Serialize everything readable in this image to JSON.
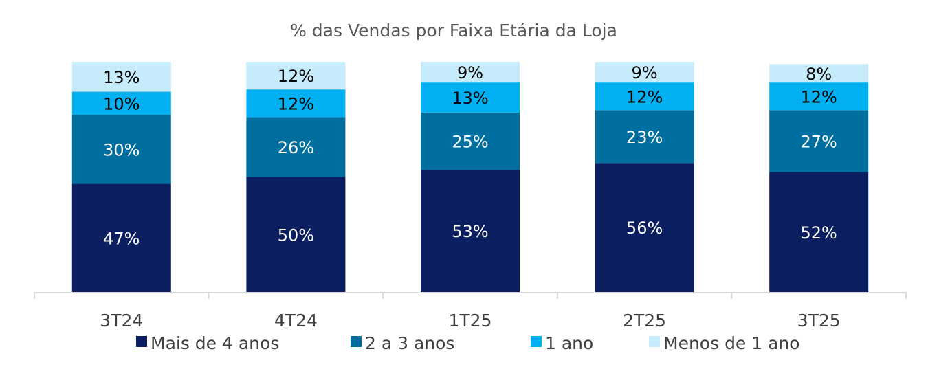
{
  "chart_data": {
    "type": "bar",
    "stacked": true,
    "title": "% das Vendas por Faixa Etária da Loja",
    "xlabel": "",
    "ylabel": "",
    "ylim": [
      0,
      100
    ],
    "grid": false,
    "legend_position": "bottom",
    "categories": [
      "3T24",
      "4T24",
      "1T25",
      "2T25",
      "3T25"
    ],
    "series": [
      {
        "name": "Mais de 4 anos",
        "color": "#0b1e5f",
        "label_color": "#ffffff",
        "values": [
          47,
          50,
          53,
          56,
          52
        ]
      },
      {
        "name": "2 a 3 anos",
        "color": "#006fa0",
        "label_color": "#ffffff",
        "values": [
          30,
          26,
          25,
          23,
          27
        ]
      },
      {
        "name": "1 ano",
        "color": "#00b0f0",
        "label_color": "#000000",
        "values": [
          10,
          12,
          13,
          12,
          12
        ]
      },
      {
        "name": "Menos de 1 ano",
        "color": "#c6ebfb",
        "label_color": "#000000",
        "values": [
          13,
          12,
          9,
          9,
          8
        ]
      }
    ],
    "value_suffix": "%"
  }
}
